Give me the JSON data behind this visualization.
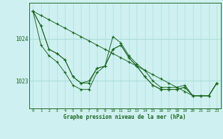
{
  "title": "Graphe pression niveau de la mer (hPa)",
  "background_color": "#cff0f0",
  "grid_color_v": "#aadddd",
  "grid_color_h": "#aadddd",
  "line_color": "#1a6620",
  "xlim": [
    -0.5,
    23.5
  ],
  "ylim": [
    1022.35,
    1024.85
  ],
  "xticks": [
    0,
    1,
    2,
    3,
    4,
    5,
    6,
    7,
    8,
    9,
    10,
    11,
    12,
    13,
    14,
    15,
    16,
    17,
    18,
    19,
    20,
    21,
    22,
    23
  ],
  "yticks": [
    1023,
    1024
  ],
  "series": [
    [
      1024.65,
      1024.3,
      1023.75,
      1023.65,
      1023.5,
      1023.1,
      1022.95,
      1022.95,
      1023.3,
      1023.35,
      1024.05,
      1023.9,
      1023.6,
      1023.4,
      1023.25,
      1023.0,
      1022.85,
      1022.85,
      1022.85,
      1022.9,
      1022.65,
      1022.65,
      1022.65,
      1022.95
    ],
    [
      1024.65,
      1024.3,
      1023.75,
      1023.65,
      1023.5,
      1023.1,
      1022.95,
      1023.0,
      1023.3,
      1023.35,
      1023.75,
      1023.85,
      1023.55,
      1023.35,
      1023.1,
      1022.9,
      1022.8,
      1022.8,
      1022.8,
      1022.85,
      1022.65,
      1022.65,
      1022.65,
      1022.95
    ],
    [
      1024.65,
      1023.85,
      1023.6,
      1023.45,
      1023.2,
      1022.9,
      1022.8,
      1022.8,
      1023.2,
      1023.35,
      1023.75,
      1023.85,
      1023.55,
      1023.35,
      1023.1,
      1022.9,
      1022.8,
      1022.8,
      1022.8,
      1022.85,
      1022.65,
      1022.65,
      1022.65,
      1022.95
    ],
    [
      1024.65,
      1024.55,
      1024.45,
      1024.35,
      1024.25,
      1024.15,
      1024.05,
      1023.95,
      1023.85,
      1023.75,
      1023.65,
      1023.55,
      1023.45,
      1023.35,
      1023.25,
      1023.15,
      1023.05,
      1022.95,
      1022.85,
      1022.75,
      1022.65,
      1022.65,
      1022.65,
      1022.95
    ]
  ]
}
